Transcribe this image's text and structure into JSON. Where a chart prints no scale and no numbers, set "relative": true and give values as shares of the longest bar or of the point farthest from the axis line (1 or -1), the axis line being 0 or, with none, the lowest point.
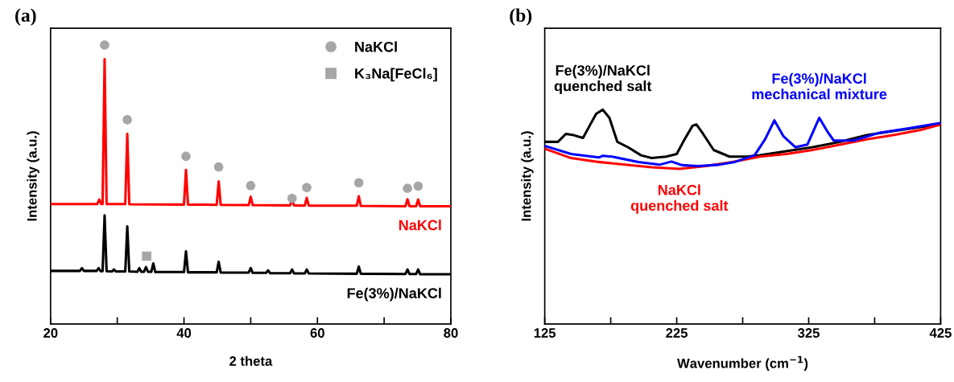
{
  "chart_data": [
    {
      "type": "line",
      "title": "(a)",
      "xlabel": "2 theta",
      "ylabel": "Intensity (a.u.)",
      "relative": true,
      "xlim": [
        20,
        80
      ],
      "xticks": [
        20,
        {
          "value": 30,
          "label": null
        },
        40,
        {
          "value": 50,
          "label": null
        },
        60,
        {
          "value": 70,
          "label": null
        },
        80
      ],
      "tick_labels": "x",
      "legend": "top right",
      "grid": false,
      "series": [
        {
          "name": "NaKCl",
          "color": "#ff0000",
          "x": [
            20,
            27.0,
            27.3,
            27.6,
            27.8,
            28.1,
            28.4,
            31.2,
            31.5,
            31.8,
            40.0,
            40.3,
            40.6,
            44.9,
            45.2,
            45.5,
            49.7,
            50.0,
            50.3,
            55.9,
            56.2,
            56.5,
            58.1,
            58.4,
            58.7,
            65.9,
            66.2,
            66.5,
            73.2,
            73.5,
            73.8,
            74.8,
            75.1,
            75.4,
            80
          ],
          "values": [
            0.43,
            0.43,
            0.446,
            0.43,
            0.43,
            0.949,
            0.43,
            0.43,
            0.681,
            0.429,
            0.428,
            0.552,
            0.428,
            0.427,
            0.511,
            0.427,
            0.426,
            0.456,
            0.426,
            0.425,
            0.446,
            0.425,
            0.424,
            0.452,
            0.424,
            0.424,
            0.458,
            0.423,
            0.422,
            0.447,
            0.422,
            0.422,
            0.446,
            0.422,
            0.422
          ]
        },
        {
          "name": "Fe(3%)/NaKCl",
          "color": "#000000",
          "x": [
            20,
            24.4,
            24.7,
            25.0,
            26.9,
            27.2,
            27.5,
            27.8,
            28.1,
            28.4,
            29.2,
            29.5,
            29.8,
            31.2,
            31.5,
            31.8,
            33.0,
            33.3,
            33.6,
            34.0,
            34.3,
            34.6,
            35.1,
            35.4,
            35.7,
            40.0,
            40.3,
            40.6,
            44.9,
            45.2,
            45.5,
            49.7,
            50.0,
            50.3,
            52.3,
            52.6,
            52.9,
            55.9,
            56.2,
            56.5,
            58.1,
            58.4,
            58.7,
            65.9,
            66.2,
            66.5,
            73.2,
            73.5,
            73.8,
            74.8,
            75.1,
            75.4,
            80
          ],
          "values": [
            0.19,
            0.19,
            0.2,
            0.19,
            0.19,
            0.2,
            0.189,
            0.189,
            0.389,
            0.189,
            0.188,
            0.195,
            0.188,
            0.188,
            0.35,
            0.188,
            0.187,
            0.2,
            0.187,
            0.187,
            0.204,
            0.187,
            0.187,
            0.217,
            0.186,
            0.186,
            0.26,
            0.185,
            0.185,
            0.223,
            0.184,
            0.184,
            0.2,
            0.183,
            0.183,
            0.192,
            0.182,
            0.182,
            0.195,
            0.181,
            0.181,
            0.195,
            0.181,
            0.18,
            0.206,
            0.18,
            0.179,
            0.195,
            0.179,
            0.179,
            0.195,
            0.178,
            0.178
          ]
        },
        {
          "type": "scatter",
          "name": "NaKCl",
          "marker": "circle",
          "color": "#a6a6a6",
          "x": [
            28.1,
            31.5,
            40.3,
            45.2,
            50.0,
            56.2,
            58.4,
            66.2,
            73.5,
            75.1
          ],
          "values": [
            1.0,
            0.732,
            0.601,
            0.563,
            0.496,
            0.45,
            0.489,
            0.506,
            0.486,
            0.494
          ]
        },
        {
          "type": "scatter",
          "name": "K₃Na[FeCl₆]",
          "marker": "square",
          "color": "#a6a6a6",
          "x": [
            34.4
          ],
          "values": [
            0.243
          ]
        }
      ]
    },
    {
      "type": "line",
      "title": "(b)",
      "xlabel": "Wavenumber (cm$^{−1}$)",
      "ylabel": "Intensity (a.u.)",
      "relative": true,
      "xlim": [
        125,
        425
      ],
      "xticks": [
        125,
        {
          "value": 175,
          "label": null
        },
        225,
        {
          "value": 275,
          "label": null
        },
        325,
        {
          "value": 375,
          "label": null
        },
        425
      ],
      "tick_labels": "x",
      "grid": false,
      "series": [
        {
          "name": "Fe(3%)/NaKCl\nquenched salt",
          "color": "#000000",
          "x": [
            125,
            135,
            141,
            147,
            154,
            159,
            164,
            169,
            174,
            180,
            188,
            198,
            206,
            217,
            225,
            231,
            237,
            240,
            245,
            253,
            265,
            278,
            288,
            308,
            328,
            349,
            369,
            389,
            410,
            425
          ],
          "values": [
            0.85,
            0.85,
            0.887,
            0.881,
            0.868,
            0.925,
            0.981,
            1.0,
            0.962,
            0.85,
            0.825,
            0.787,
            0.774,
            0.781,
            0.793,
            0.862,
            0.925,
            0.931,
            0.887,
            0.812,
            0.781,
            0.781,
            0.787,
            0.806,
            0.825,
            0.85,
            0.881,
            0.9,
            0.919,
            0.931
          ]
        },
        {
          "name": "NaKCl\nquenched salt",
          "color": "#ff0000",
          "x": [
            125,
            145,
            166,
            186,
            206,
            227,
            247,
            267,
            288,
            308,
            328,
            349,
            369,
            389,
            410,
            425
          ],
          "values": [
            0.818,
            0.774,
            0.756,
            0.743,
            0.731,
            0.724,
            0.737,
            0.756,
            0.781,
            0.793,
            0.812,
            0.837,
            0.862,
            0.881,
            0.906,
            0.931
          ]
        },
        {
          "name": "Fe(3%)/NaKCl\nmechanical mixture",
          "color": "#0000ff",
          "x": [
            125,
            145,
            166,
            169,
            176,
            196,
            212,
            221,
            229,
            241,
            257,
            269,
            284,
            292,
            299,
            306,
            315,
            324,
            333,
            339,
            344,
            359,
            379,
            400,
            425
          ],
          "values": [
            0.831,
            0.793,
            0.777,
            0.785,
            0.781,
            0.756,
            0.743,
            0.758,
            0.741,
            0.737,
            0.743,
            0.756,
            0.787,
            0.862,
            0.95,
            0.875,
            0.825,
            0.837,
            0.962,
            0.9,
            0.856,
            0.856,
            0.893,
            0.912,
            0.938
          ]
        }
      ]
    }
  ]
}
